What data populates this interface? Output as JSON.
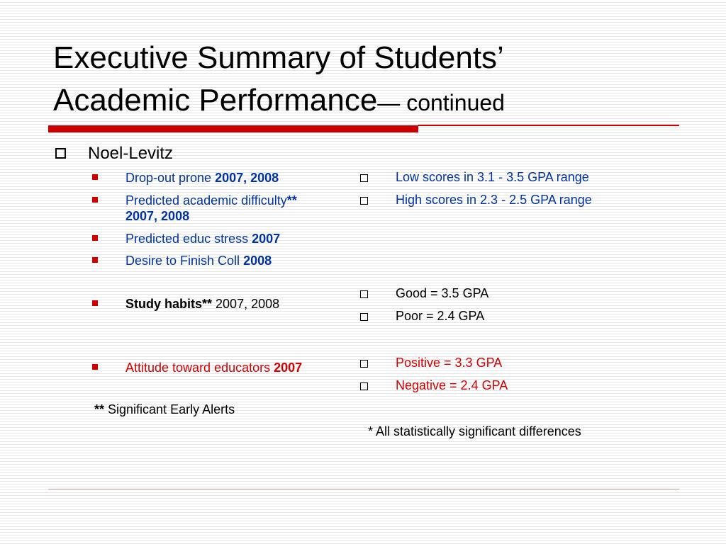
{
  "slide": {
    "title_line1": "Executive Summary of Students’",
    "title_line2": "Academic Performance",
    "title_suffix": "— continued",
    "main_bullet": "Noel-Levitz",
    "left_items": [
      {
        "text": "Drop-out prone ",
        "bold": "2007, 2008",
        "color": "#0033a0"
      },
      {
        "text": "Predicted academic difficulty",
        "bold": "**",
        "line2": "2007, 2008",
        "color": "#0033a0"
      },
      {
        "text": "Predicted educ stress ",
        "bold": "2007",
        "color": "#0033a0"
      },
      {
        "text": "Desire to Finish Coll ",
        "bold": "2008",
        "color": "#0033a0"
      },
      {
        "bold_lead": "Study habits**",
        "text": " 2007,  2008",
        "color": "#000000"
      },
      {
        "text": "Attitude toward educators ",
        "bold": "2007",
        "color": "#d40000"
      }
    ],
    "right_items": [
      {
        "text": "Low scores in 3.1 - 3.5  GPA range",
        "color": "#0033a0"
      },
      {
        "text": "High scores in 2.3 - 2.5 GPA range",
        "color": "#0033a0"
      },
      {
        "text": "Good =  3.5 GPA",
        "color": "#000000"
      },
      {
        "text": "Poor = 2.4 GPA",
        "color": "#000000"
      },
      {
        "text": "Positive = 3.3 GPA",
        "color": "#d40000"
      },
      {
        "text": "Negative = 2.4 GPA",
        "color": "#d40000"
      }
    ],
    "footnote_left_mark": "**",
    "footnote_left_text": " Significant Early Alerts",
    "footnote_right": "* All statistically significant differences",
    "accent_color": "#cc0000"
  }
}
